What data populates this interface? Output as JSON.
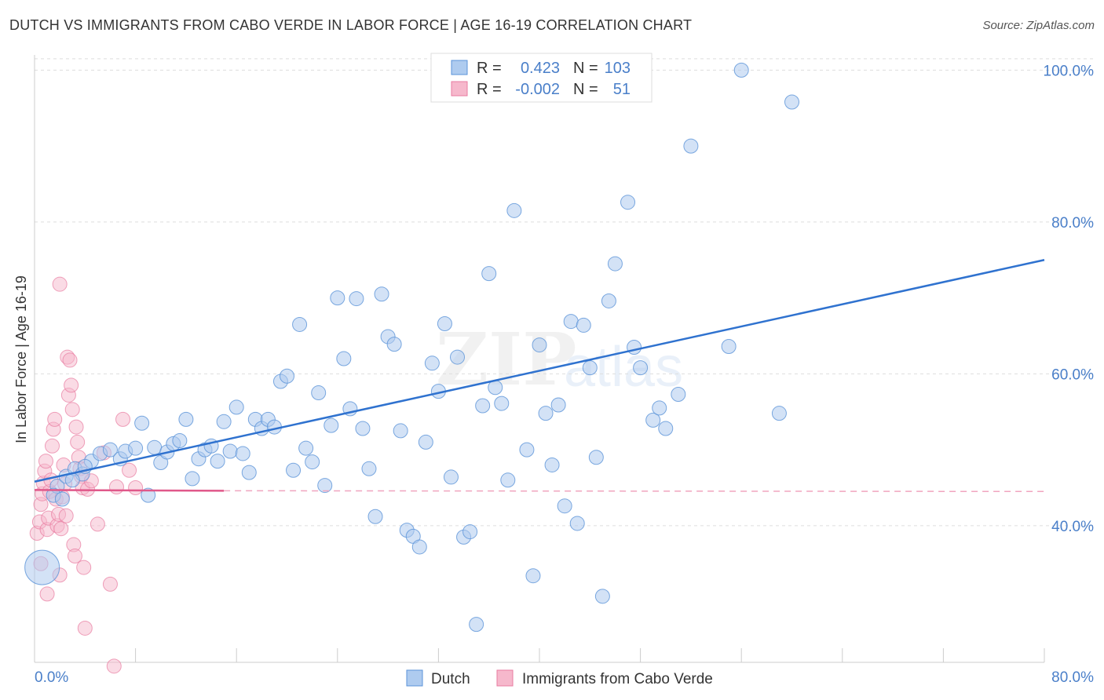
{
  "title": "DUTCH VS IMMIGRANTS FROM CABO VERDE IN LABOR FORCE | AGE 16-19 CORRELATION CHART",
  "source": "Source: ZipAtlas.com",
  "watermark": {
    "zip": "ZIP",
    "atlas": "atlas"
  },
  "colors": {
    "dutch": "#5b93d8",
    "dutch_fill": "#aecbef",
    "cabo": "#e87ba0",
    "cabo_fill": "#f6b8cc",
    "value_text": "#4a7fc9",
    "grid": "#dddddd"
  },
  "chart_data": {
    "type": "scatter",
    "title": "DUTCH VS IMMIGRANTS FROM CABO VERDE IN LABOR FORCE | AGE 16-19 CORRELATION CHART",
    "xlabel": "",
    "ylabel": "In Labor Force | Age 16-19",
    "xlim": [
      0,
      80
    ],
    "ylim": [
      22,
      102
    ],
    "x_tick_labels": [
      "0.0%",
      "80.0%"
    ],
    "y_ticks": [
      40,
      60,
      80,
      100
    ],
    "y_tick_labels": [
      "40.0%",
      "60.0%",
      "80.0%",
      "100.0%"
    ],
    "grid": true,
    "legend_position": "top-center",
    "series": [
      {
        "name": "Dutch",
        "r_label": "R =",
        "r_value": "0.423",
        "n_label": "N =",
        "n_value": "103",
        "trend": {
          "x": [
            0,
            80
          ],
          "y": [
            45.8,
            75.0
          ],
          "style": "solid"
        },
        "points": [
          [
            1.8,
            45.2
          ],
          [
            2.5,
            46.5
          ],
          [
            3.2,
            47.5
          ],
          [
            3.8,
            46.8
          ],
          [
            4.5,
            48.5
          ],
          [
            5.2,
            49.5
          ],
          [
            6.0,
            50.0
          ],
          [
            6.8,
            48.8
          ],
          [
            7.2,
            49.8
          ],
          [
            8.0,
            50.2
          ],
          [
            8.5,
            53.5
          ],
          [
            9.0,
            44.0
          ],
          [
            9.5,
            50.3
          ],
          [
            10.0,
            48.3
          ],
          [
            10.5,
            49.7
          ],
          [
            11.0,
            50.8
          ],
          [
            11.5,
            51.2
          ],
          [
            12.0,
            54.0
          ],
          [
            12.5,
            46.2
          ],
          [
            13.0,
            48.8
          ],
          [
            13.5,
            50.0
          ],
          [
            14.0,
            50.5
          ],
          [
            14.5,
            48.5
          ],
          [
            15.0,
            53.7
          ],
          [
            15.5,
            49.8
          ],
          [
            16.0,
            55.6
          ],
          [
            16.5,
            49.5
          ],
          [
            17.0,
            47.0
          ],
          [
            17.5,
            54.0
          ],
          [
            18.0,
            52.8
          ],
          [
            18.5,
            54.0
          ],
          [
            19.0,
            53.0
          ],
          [
            19.5,
            59.0
          ],
          [
            20.0,
            59.7
          ],
          [
            20.5,
            47.3
          ],
          [
            21.0,
            66.5
          ],
          [
            21.5,
            50.2
          ],
          [
            22.0,
            48.4
          ],
          [
            22.5,
            57.5
          ],
          [
            23.0,
            45.3
          ],
          [
            23.5,
            53.2
          ],
          [
            24.0,
            70.0
          ],
          [
            24.5,
            62.0
          ],
          [
            25.0,
            55.4
          ],
          [
            25.5,
            69.9
          ],
          [
            26.0,
            52.8
          ],
          [
            26.5,
            47.5
          ],
          [
            27.0,
            41.2
          ],
          [
            27.5,
            70.5
          ],
          [
            28.0,
            64.9
          ],
          [
            28.5,
            63.9
          ],
          [
            29.0,
            52.5
          ],
          [
            29.5,
            39.4
          ],
          [
            30.0,
            38.6
          ],
          [
            30.5,
            37.2
          ],
          [
            31.0,
            51.0
          ],
          [
            31.5,
            61.4
          ],
          [
            32.0,
            57.7
          ],
          [
            32.5,
            66.6
          ],
          [
            33.0,
            46.4
          ],
          [
            33.5,
            62.2
          ],
          [
            34.0,
            38.5
          ],
          [
            34.5,
            39.2
          ],
          [
            35.0,
            27.0
          ],
          [
            35.5,
            55.8
          ],
          [
            36.0,
            73.2
          ],
          [
            36.5,
            58.2
          ],
          [
            37.0,
            56.1
          ],
          [
            37.5,
            46.0
          ],
          [
            38.0,
            81.5
          ],
          [
            39.0,
            50.0
          ],
          [
            39.5,
            33.4
          ],
          [
            40.0,
            63.8
          ],
          [
            40.5,
            54.8
          ],
          [
            41.0,
            48.0
          ],
          [
            41.5,
            55.9
          ],
          [
            42.0,
            42.6
          ],
          [
            42.5,
            66.9
          ],
          [
            43.0,
            40.3
          ],
          [
            43.5,
            66.4
          ],
          [
            44.0,
            60.8
          ],
          [
            44.5,
            49.0
          ],
          [
            45.0,
            30.7
          ],
          [
            45.5,
            69.6
          ],
          [
            46.0,
            74.5
          ],
          [
            47.0,
            82.6
          ],
          [
            47.5,
            63.5
          ],
          [
            48.0,
            60.8
          ],
          [
            49.0,
            53.9
          ],
          [
            49.5,
            55.5
          ],
          [
            50.0,
            52.8
          ],
          [
            51.0,
            57.3
          ],
          [
            52.0,
            90.0
          ],
          [
            55.0,
            63.6
          ],
          [
            56.0,
            100.0
          ],
          [
            59.0,
            54.8
          ],
          [
            60.0,
            95.8
          ],
          [
            1.5,
            44.0
          ],
          [
            2.2,
            43.5
          ],
          [
            3.0,
            46.0
          ],
          [
            4.0,
            47.8
          ],
          [
            0.6,
            34.5
          ]
        ]
      },
      {
        "name": "Immigrants from Cabo Verde",
        "r_label": "R =",
        "r_value": "-0.002",
        "n_label": "N =",
        "n_value": "51",
        "trend": {
          "x": [
            0,
            15,
            80
          ],
          "y": [
            44.7,
            44.6,
            44.5
          ],
          "style": "solid-then-dashed"
        },
        "points": [
          [
            0.2,
            39.0
          ],
          [
            0.4,
            40.5
          ],
          [
            0.5,
            42.8
          ],
          [
            0.6,
            44.2
          ],
          [
            0.7,
            45.6
          ],
          [
            0.8,
            47.2
          ],
          [
            0.9,
            48.5
          ],
          [
            1.0,
            39.5
          ],
          [
            1.1,
            41.0
          ],
          [
            1.2,
            44.5
          ],
          [
            1.3,
            46.0
          ],
          [
            1.4,
            50.5
          ],
          [
            1.5,
            52.7
          ],
          [
            1.6,
            54.0
          ],
          [
            1.7,
            43.5
          ],
          [
            1.8,
            40.0
          ],
          [
            1.9,
            41.5
          ],
          [
            2.0,
            33.5
          ],
          [
            2.1,
            39.6
          ],
          [
            2.2,
            43.8
          ],
          [
            2.3,
            48.0
          ],
          [
            2.4,
            45.5
          ],
          [
            2.5,
            41.3
          ],
          [
            2.6,
            62.2
          ],
          [
            2.7,
            57.2
          ],
          [
            2.8,
            61.8
          ],
          [
            2.9,
            58.5
          ],
          [
            3.0,
            55.3
          ],
          [
            3.1,
            37.5
          ],
          [
            3.2,
            36.0
          ],
          [
            3.3,
            53.0
          ],
          [
            3.4,
            51.0
          ],
          [
            3.5,
            49.0
          ],
          [
            3.6,
            47.5
          ],
          [
            3.7,
            46.5
          ],
          [
            3.8,
            45.0
          ],
          [
            3.9,
            34.5
          ],
          [
            4.0,
            26.5
          ],
          [
            4.2,
            44.8
          ],
          [
            4.5,
            45.9
          ],
          [
            5.0,
            40.2
          ],
          [
            5.5,
            49.6
          ],
          [
            6.0,
            32.3
          ],
          [
            6.5,
            45.1
          ],
          [
            7.0,
            54.0
          ],
          [
            7.5,
            47.3
          ],
          [
            8.0,
            45.0
          ],
          [
            2.0,
            71.8
          ],
          [
            1.0,
            31.0
          ],
          [
            0.5,
            35.0
          ],
          [
            6.3,
            21.5
          ]
        ]
      }
    ]
  }
}
